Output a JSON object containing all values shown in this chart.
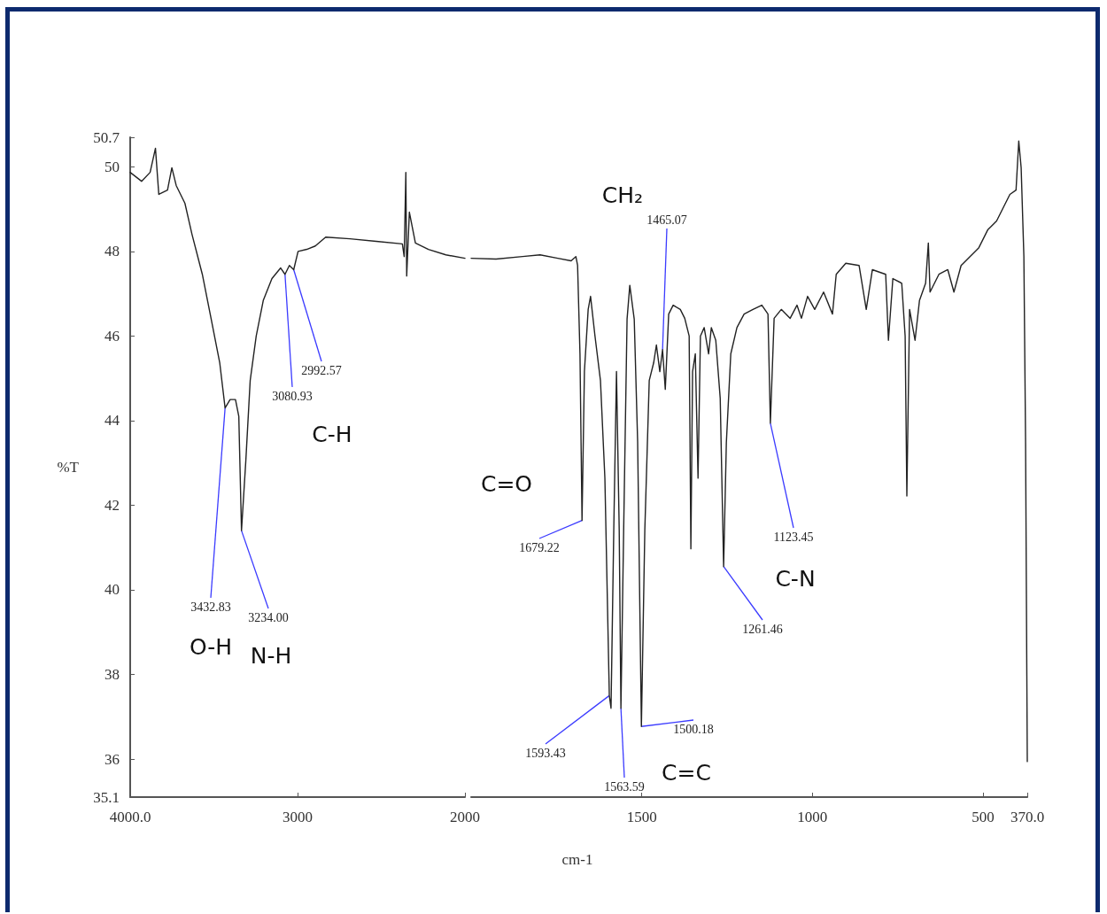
{
  "chart_data": [
    {
      "type": "line",
      "ylabel": "%T",
      "color": "#222222",
      "marker": "none",
      "line_style": "solid",
      "xlim": [
        4000,
        2000
      ],
      "xticks": [
        {
          "value": 4000,
          "label": "4000.0"
        },
        3000,
        2000
      ],
      "ylim": [
        35.1,
        50.7
      ],
      "yticks": [
        35.1,
        36,
        38,
        40,
        42,
        44,
        46,
        48,
        50,
        50.7
      ],
      "x": [
        4000,
        3932,
        3881,
        3849,
        3829,
        3777,
        3751,
        3725,
        3673,
        3631,
        3569,
        3517,
        3465,
        3433,
        3403,
        3371,
        3351,
        3335,
        3309,
        3283,
        3247,
        3205,
        3153,
        3101,
        3075,
        3049,
        3023,
        2997,
        2945,
        2894,
        2832,
        2687,
        2530,
        2374,
        2363,
        2353,
        2348,
        2332,
        2296,
        2218,
        2114,
        2000
      ],
      "values": [
        49.87,
        49.66,
        49.87,
        50.44,
        49.35,
        49.45,
        49.98,
        49.56,
        49.14,
        48.41,
        47.46,
        46.42,
        45.37,
        44.3,
        44.5,
        44.5,
        44.1,
        41.4,
        43.06,
        44.95,
        46.0,
        46.84,
        47.36,
        47.61,
        47.46,
        47.67,
        47.57,
        48.0,
        48.05,
        48.13,
        48.34,
        48.3,
        48.24,
        48.18,
        47.88,
        49.87,
        47.42,
        48.93,
        48.2,
        48.05,
        47.92,
        47.84
      ],
      "annotations": [
        {
          "text": "3432.83",
          "x": 3433,
          "y": 44.3
        },
        {
          "text": "3234.00",
          "x": 3335,
          "y": 41.4
        },
        {
          "text": "3080.93",
          "x": 3075,
          "y": 47.46
        },
        {
          "text": "2992.57",
          "x": 3023,
          "y": 47.57
        },
        "O-H",
        "N-H",
        "C-H"
      ]
    },
    {
      "type": "line",
      "xlabel": "cm-1",
      "color": "#222222",
      "marker": "none",
      "line_style": "solid",
      "tick_labels": "x",
      "xlim": [
        2000,
        370
      ],
      "xticks": [
        1500,
        1000,
        500,
        {
          "value": 370,
          "label": "370.0"
        }
      ],
      "ylim": [
        35.1,
        50.7
      ],
      "yticks": [
        35.1,
        36,
        38,
        40,
        42,
        44,
        46,
        48,
        50,
        50.7
      ],
      "x": [
        2000,
        1927,
        1849,
        1798,
        1746,
        1707,
        1693,
        1688,
        1681,
        1675,
        1668,
        1657,
        1650,
        1637,
        1621,
        1608,
        1595,
        1590,
        1582,
        1574,
        1566,
        1561,
        1553,
        1543,
        1535,
        1522,
        1512,
        1501,
        1491,
        1478,
        1465,
        1457,
        1447,
        1439,
        1431,
        1421,
        1408,
        1387,
        1374,
        1361,
        1356,
        1351,
        1343,
        1335,
        1328,
        1317,
        1304,
        1296,
        1283,
        1270,
        1260,
        1252,
        1239,
        1221,
        1200,
        1174,
        1148,
        1130,
        1123,
        1112,
        1091,
        1065,
        1045,
        1032,
        1014,
        993,
        967,
        941,
        930,
        902,
        863,
        842,
        824,
        785,
        777,
        764,
        738,
        728,
        723,
        715,
        699,
        686,
        668,
        660,
        655,
        629,
        603,
        585,
        564,
        538,
        512,
        486,
        460,
        421,
        403,
        395,
        388,
        380,
        375,
        370
      ],
      "values": [
        47.84,
        47.82,
        47.88,
        47.92,
        47.84,
        47.78,
        47.88,
        47.67,
        45.58,
        41.64,
        45.16,
        46.63,
        46.94,
        46.0,
        44.95,
        42.64,
        37.5,
        37.2,
        41.4,
        45.16,
        41.4,
        37.2,
        41.4,
        46.4,
        47.2,
        46.4,
        43.5,
        36.77,
        41.4,
        44.95,
        45.37,
        45.79,
        45.16,
        45.68,
        44.74,
        46.52,
        46.73,
        46.63,
        46.42,
        46.0,
        40.97,
        45.16,
        45.58,
        42.64,
        46.0,
        46.2,
        45.58,
        46.2,
        45.9,
        44.53,
        40.55,
        43.48,
        45.58,
        46.2,
        46.52,
        46.63,
        46.73,
        46.52,
        43.94,
        46.42,
        46.63,
        46.42,
        46.73,
        46.42,
        46.94,
        46.63,
        47.04,
        46.52,
        47.46,
        47.72,
        47.67,
        46.63,
        47.57,
        47.46,
        45.9,
        47.36,
        47.25,
        46.0,
        42.22,
        46.63,
        45.9,
        46.84,
        47.25,
        48.2,
        47.04,
        47.46,
        47.57,
        47.04,
        47.67,
        47.88,
        48.09,
        48.51,
        48.72,
        49.35,
        49.45,
        50.61,
        49.98,
        47.88,
        43.48,
        35.94
      ],
      "annotations": [
        {
          "text": "1679.22",
          "x": 1675,
          "y": 41.64
        },
        {
          "text": "1593.43",
          "x": 1595,
          "y": 37.5
        },
        {
          "text": "1563.59",
          "x": 1561,
          "y": 37.2
        },
        {
          "text": "1500.18",
          "x": 1501,
          "y": 36.77
        },
        {
          "text": "1465.07",
          "x": 1439,
          "y": 45.68
        },
        {
          "text": "1261.46",
          "x": 1260,
          "y": 40.55
        },
        {
          "text": "1123.45",
          "x": 1123,
          "y": 43.94
        },
        "C=O",
        "CH₂",
        "C=C",
        "C-N"
      ]
    }
  ]
}
